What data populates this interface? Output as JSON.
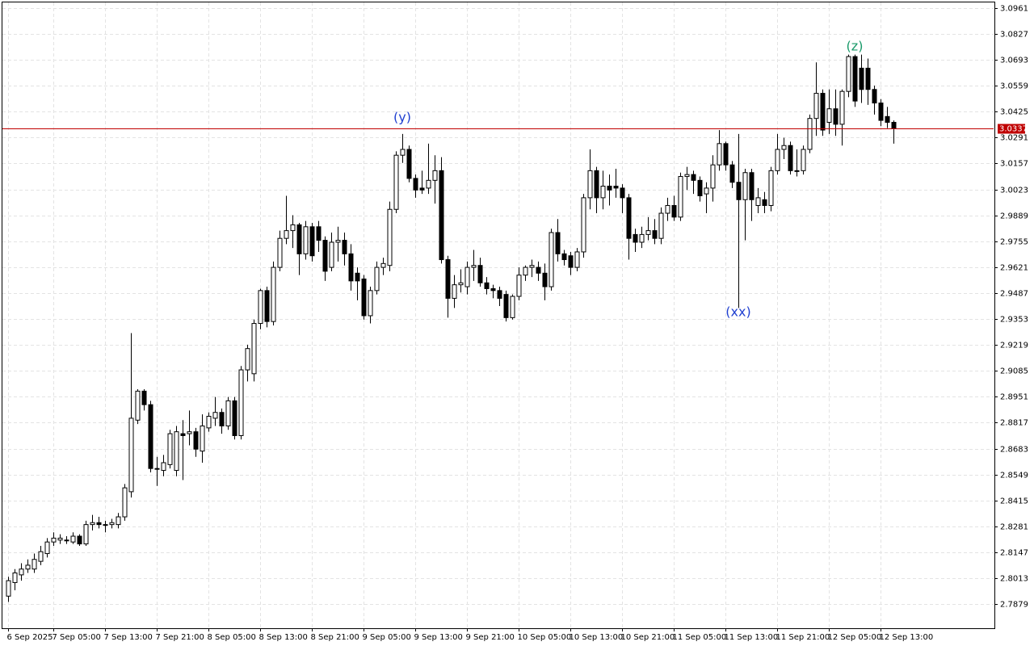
{
  "chart_data": {
    "type": "candlestick",
    "up_color": "#ffffff",
    "down_color": "#000000",
    "wick_color": "#000000",
    "open": [
      2.792,
      2.799,
      2.803,
      2.806,
      2.806,
      2.81,
      2.814,
      2.82,
      2.821,
      2.821,
      2.82,
      2.823,
      2.819,
      2.829,
      2.83,
      2.829,
      2.829,
      2.829,
      2.833,
      2.846,
      2.883,
      2.898,
      2.891,
      2.858,
      2.857,
      2.86,
      2.857,
      2.876,
      2.876,
      2.877,
      2.867,
      2.879,
      2.884,
      2.887,
      2.88,
      2.893,
      2.875,
      2.909,
      2.907,
      2.933,
      2.95,
      2.934,
      2.962,
      2.977,
      2.981,
      2.984,
      2.969,
      2.983,
      2.983,
      2.976,
      2.962,
      2.975,
      2.976,
      2.969,
      2.959,
      2.956,
      2.937,
      2.95,
      2.962,
      2.963,
      2.992,
      3.02,
      3.023,
      3.008,
      3.003,
      3.003,
      3.007,
      3.012,
      2.966,
      2.946,
      2.953,
      2.952,
      2.962,
      2.963,
      2.954,
      2.951,
      2.95,
      2.948,
      2.936,
      2.947,
      2.958,
      2.962,
      2.962,
      2.959,
      2.952,
      2.98,
      2.969,
      2.968,
      2.962,
      2.97,
      2.998,
      3.012,
      2.998,
      3.004,
      3.004,
      3.003,
      2.998,
      2.979,
      2.975,
      2.979,
      2.981,
      2.977,
      2.99,
      2.994,
      2.988,
      3.009,
      3.01,
      3.007,
      3.0,
      3.003,
      3.015,
      3.026,
      3.015,
      3.006,
      2.997,
      3.011,
      2.994,
      2.997,
      2.994,
      3.012,
      3.023,
      3.025,
      3.012,
      3.012,
      3.023,
      3.039,
      3.052,
      3.037,
      3.044,
      3.036,
      3.053,
      3.071,
      3.065,
      3.065,
      3.054,
      3.047,
      3.04,
      3.037
    ],
    "high": [
      2.802,
      2.806,
      2.809,
      2.811,
      2.814,
      2.818,
      2.822,
      2.825,
      2.824,
      2.823,
      2.825,
      2.824,
      2.831,
      2.834,
      2.833,
      2.831,
      2.832,
      2.835,
      2.85,
      2.928,
      2.899,
      2.899,
      2.893,
      2.864,
      2.865,
      2.878,
      2.88,
      2.883,
      2.888,
      2.879,
      2.886,
      2.887,
      2.895,
      2.889,
      2.895,
      2.895,
      2.911,
      2.922,
      2.935,
      2.951,
      2.952,
      2.965,
      2.981,
      2.999,
      2.989,
      2.985,
      2.986,
      2.985,
      2.986,
      2.978,
      2.98,
      2.983,
      2.98,
      2.974,
      2.962,
      2.958,
      2.952,
      2.965,
      2.967,
      2.996,
      3.022,
      3.031,
      3.025,
      3.01,
      3.012,
      3.026,
      3.02,
      3.019,
      2.968,
      2.958,
      2.961,
      2.965,
      2.971,
      2.967,
      2.957,
      2.953,
      2.952,
      2.95,
      2.948,
      2.962,
      2.963,
      2.966,
      2.965,
      2.964,
      2.982,
      2.987,
      2.971,
      2.97,
      2.972,
      3.0,
      3.023,
      3.014,
      3.012,
      3.01,
      3.013,
      3.005,
      3.0,
      2.982,
      2.983,
      2.988,
      2.987,
      2.993,
      2.998,
      2.999,
      3.011,
      3.014,
      3.012,
      3.009,
      3.006,
      3.02,
      3.033,
      3.027,
      3.017,
      3.031,
      3.013,
      3.013,
      3.003,
      3.001,
      3.014,
      3.031,
      3.029,
      3.027,
      3.023,
      3.025,
      3.041,
      3.068,
      3.054,
      3.054,
      3.054,
      3.054,
      3.072,
      3.072,
      3.072,
      3.07,
      3.056,
      3.049,
      3.045,
      3.038
    ],
    "low": [
      2.789,
      2.795,
      2.8,
      2.804,
      2.804,
      2.808,
      2.812,
      2.818,
      2.819,
      2.819,
      2.819,
      2.818,
      2.818,
      2.826,
      2.827,
      2.825,
      2.827,
      2.827,
      2.831,
      2.843,
      2.881,
      2.888,
      2.856,
      2.849,
      2.854,
      2.858,
      2.854,
      2.852,
      2.87,
      2.864,
      2.861,
      2.877,
      2.88,
      2.876,
      2.878,
      2.873,
      2.873,
      2.903,
      2.903,
      2.93,
      2.931,
      2.932,
      2.96,
      2.974,
      2.972,
      2.958,
      2.966,
      2.965,
      2.97,
      2.955,
      2.96,
      2.965,
      2.963,
      2.95,
      2.945,
      2.935,
      2.933,
      2.948,
      2.958,
      2.96,
      2.99,
      3.016,
      3.006,
      2.998,
      3.0,
      3.0,
      2.995,
      2.964,
      2.936,
      2.941,
      2.949,
      2.948,
      2.955,
      2.952,
      2.948,
      2.946,
      2.942,
      2.934,
      2.935,
      2.945,
      2.955,
      2.957,
      2.955,
      2.945,
      2.95,
      2.965,
      2.963,
      2.958,
      2.96,
      2.967,
      2.992,
      2.99,
      2.992,
      2.994,
      2.998,
      2.99,
      2.966,
      2.97,
      2.972,
      2.976,
      2.974,
      2.974,
      2.986,
      2.986,
      2.986,
      3.002,
      3.0,
      2.996,
      2.99,
      2.996,
      3.012,
      3.012,
      3.003,
      2.941,
      2.976,
      2.986,
      2.99,
      2.99,
      2.991,
      3.01,
      3.018,
      3.01,
      3.009,
      3.01,
      3.021,
      3.03,
      3.03,
      3.031,
      3.03,
      3.025,
      3.05,
      3.045,
      3.047,
      3.046,
      3.041,
      3.035,
      3.034,
      3.026
    ],
    "close": [
      2.8,
      2.804,
      2.806,
      2.808,
      2.811,
      2.815,
      2.82,
      2.822,
      2.822,
      2.821,
      2.823,
      2.819,
      2.829,
      2.83,
      2.829,
      2.829,
      2.83,
      2.833,
      2.848,
      2.884,
      2.898,
      2.891,
      2.858,
      2.858,
      2.861,
      2.876,
      2.877,
      2.875,
      2.877,
      2.868,
      2.88,
      2.885,
      2.887,
      2.88,
      2.893,
      2.875,
      2.909,
      2.92,
      2.933,
      2.95,
      2.934,
      2.962,
      2.977,
      2.981,
      2.984,
      2.969,
      2.983,
      2.968,
      2.976,
      2.96,
      2.975,
      2.976,
      2.969,
      2.955,
      2.955,
      2.937,
      2.95,
      2.962,
      2.964,
      2.992,
      3.02,
      3.023,
      3.008,
      3.002,
      3.002,
      3.007,
      3.012,
      2.966,
      2.946,
      2.953,
      2.954,
      2.962,
      2.963,
      2.954,
      2.951,
      2.95,
      2.946,
      2.936,
      2.947,
      2.958,
      2.962,
      2.963,
      2.959,
      2.952,
      2.98,
      2.969,
      2.966,
      2.962,
      2.97,
      2.998,
      3.012,
      2.998,
      3.004,
      3.002,
      3.003,
      2.998,
      2.977,
      2.975,
      2.979,
      2.981,
      2.977,
      2.99,
      2.994,
      2.988,
      3.009,
      3.01,
      3.007,
      2.999,
      3.003,
      3.015,
      3.026,
      3.015,
      3.006,
      2.997,
      3.011,
      2.997,
      2.998,
      2.994,
      3.012,
      3.023,
      3.025,
      3.012,
      3.012,
      3.023,
      3.039,
      3.052,
      3.033,
      3.044,
      3.036,
      3.053,
      3.071,
      3.048,
      3.054,
      3.054,
      3.047,
      3.038,
      3.037,
      3.034
    ],
    "xlim": [
      -0.875,
      152.5
    ],
    "xticks": [
      {
        "value": 0,
        "label": "6 Sep 2025"
      },
      {
        "value": 7,
        "label": "7 Sep 05:00"
      },
      {
        "value": 15,
        "label": "7 Sep 13:00"
      },
      {
        "value": 23,
        "label": "7 Sep 21:00"
      },
      {
        "value": 31,
        "label": "8 Sep 05:00"
      },
      {
        "value": 39,
        "label": "8 Sep 13:00"
      },
      {
        "value": 47,
        "label": "8 Sep 21:00"
      },
      {
        "value": 55,
        "label": "9 Sep 05:00"
      },
      {
        "value": 63,
        "label": "9 Sep 13:00"
      },
      {
        "value": 71,
        "label": "9 Sep 21:00"
      },
      {
        "value": 79,
        "label": "10 Sep 05:00"
      },
      {
        "value": 87,
        "label": "10 Sep 13:00"
      },
      {
        "value": 95,
        "label": "10 Sep 21:00"
      },
      {
        "value": 103,
        "label": "11 Sep 05:00"
      },
      {
        "value": 111,
        "label": "11 Sep 13:00"
      },
      {
        "value": 119,
        "label": "11 Sep 21:00"
      },
      {
        "value": 127,
        "label": "12 Sep 05:00"
      },
      {
        "value": 135,
        "label": "12 Sep 13:00"
      }
    ],
    "ylim": [
      2.7754,
      3.099
    ],
    "yticks": [
      3.0961,
      3.0827,
      3.0693,
      3.0559,
      3.0425,
      3.0291,
      3.0157,
      3.0023,
      2.9889,
      2.9755,
      2.9621,
      2.9487,
      2.9353,
      2.9219,
      2.9085,
      2.8951,
      2.8817,
      2.8683,
      2.8549,
      2.8415,
      2.8281,
      2.8147,
      2.8013,
      2.7879
    ],
    "grid": true,
    "hline": {
      "value": 3.0337,
      "color": "#c00000"
    },
    "annotations": [
      {
        "text": "(y)",
        "x": 61,
        "y": 3.0393,
        "color": "#1f3fd0"
      },
      {
        "text": "(xx)",
        "x": 113,
        "y": 2.9387,
        "color": "#1f3fd0"
      },
      {
        "text": "(z)",
        "x": 131,
        "y": 3.0761,
        "color": "#1a9a6a"
      }
    ]
  }
}
